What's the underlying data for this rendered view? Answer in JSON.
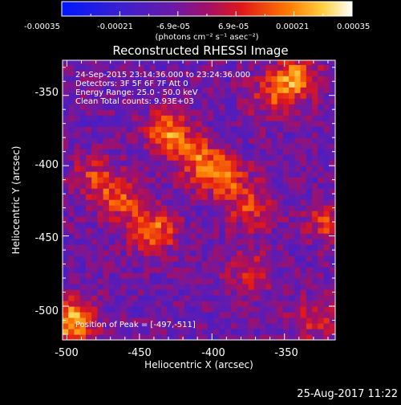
{
  "colorbar": {
    "tick_labels": [
      "-0.00035",
      "-0.00021",
      "-6.9e-05",
      "6.9e-05",
      "0.00021",
      "0.00035"
    ],
    "unit_label": "(photons cm⁻² s⁻¹ asec⁻²)",
    "range": [
      -0.00035,
      0.00035
    ]
  },
  "figure": {
    "title": "Reconstructed RHESSI Image",
    "xlabel": "Heliocentric X (arcsec)",
    "ylabel": "Heliocentric Y (arcsec)",
    "xticks": [
      "-500",
      "-450",
      "-400",
      "-350"
    ],
    "yticks": [
      "-350",
      "-400",
      "-450",
      "-500"
    ],
    "xlim": [
      -503,
      -315
    ],
    "ylim": [
      -524,
      -325
    ]
  },
  "annotations": {
    "time_range": "24-Sep-2015 23:14:36.000 to 23:24:36.000",
    "detectors": "Detectors: 3F 5F 6F 7F  Att 0",
    "energy_range": "Energy Range: 25.0 - 50.0 keV",
    "method": "Clean    Total counts: 9.93E+03",
    "peak": "Position of Peak = [-497,-511]"
  },
  "footer": {
    "timestamp": "25-Aug-2017 11:22"
  },
  "chart_data": {
    "type": "heatmap",
    "title": "Reconstructed RHESSI Image",
    "xlabel": "Heliocentric X (arcsec)",
    "ylabel": "Heliocentric Y (arcsec)",
    "xlim": [
      -503,
      -315
    ],
    "ylim": [
      -524,
      -325
    ],
    "color_range": [
      -0.00035,
      0.00035
    ],
    "peak_position": [
      -497,
      -511
    ],
    "bright_regions": [
      {
        "x": -497,
        "y": -511,
        "intensity": 0.00035
      },
      {
        "x": -430,
        "y": -377,
        "intensity": 0.0003
      },
      {
        "x": -342,
        "y": -337,
        "intensity": 0.00028
      },
      {
        "x": -410,
        "y": -395,
        "intensity": 0.00022
      },
      {
        "x": -392,
        "y": -408,
        "intensity": 0.00024
      },
      {
        "x": -440,
        "y": -447,
        "intensity": 0.00026
      },
      {
        "x": -462,
        "y": -425,
        "intensity": 0.0002
      },
      {
        "x": -480,
        "y": -408,
        "intensity": 0.00018
      },
      {
        "x": -372,
        "y": -430,
        "intensity": 0.0002
      },
      {
        "x": -375,
        "y": -475,
        "intensity": 0.00016
      },
      {
        "x": -320,
        "y": -440,
        "intensity": 0.00018
      },
      {
        "x": -330,
        "y": -510,
        "intensity": 0.00015
      },
      {
        "x": -360,
        "y": -350,
        "intensity": 0.00017
      }
    ]
  }
}
